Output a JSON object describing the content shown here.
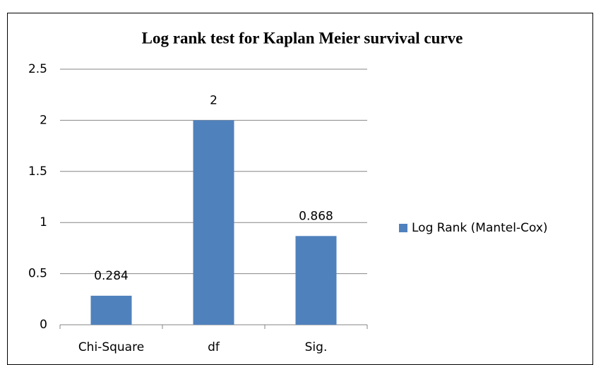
{
  "chart_data": {
    "type": "bar",
    "title": "Log rank test for Kaplan Meier survival curve",
    "categories": [
      "Chi-Square",
      "df",
      "Sig."
    ],
    "series": [
      {
        "name": "Log Rank (Mantel-Cox)",
        "color": "#4f81bd",
        "values": [
          0.284,
          2,
          0.868
        ]
      }
    ],
    "ylim": [
      0,
      2.5
    ],
    "yticks": [
      0,
      0.5,
      1,
      1.5,
      2,
      2.5
    ],
    "grid": true,
    "legend": "right",
    "data_labels": true
  }
}
